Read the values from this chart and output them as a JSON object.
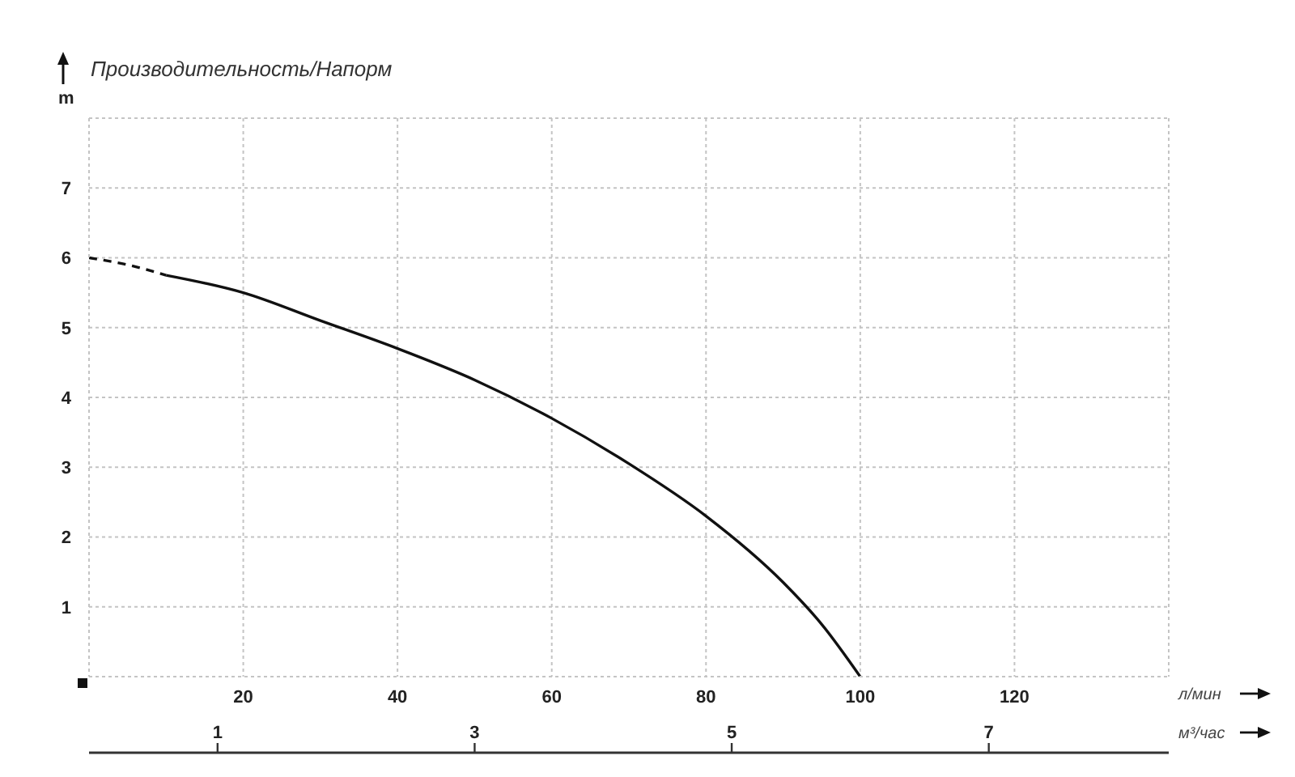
{
  "chart_data": {
    "type": "line",
    "title": "Производительность/Напорм",
    "ylabel": "m",
    "xlabel": "л/мин",
    "x2label": "м³/час",
    "series": [
      {
        "color": "#111111",
        "line_style": "dashed",
        "x": [
          0,
          5,
          10
        ],
        "values": [
          6.0,
          5.9,
          5.75
        ]
      },
      {
        "color": "#111111",
        "line_style": "solid",
        "x": [
          10,
          20,
          30,
          40,
          50,
          60,
          70,
          80,
          90,
          95,
          100
        ],
        "values": [
          5.75,
          5.5,
          5.1,
          4.7,
          4.25,
          3.7,
          3.05,
          2.3,
          1.35,
          0.75,
          0
        ]
      }
    ],
    "xlim": [
      0,
      140
    ],
    "xticks": [
      20,
      40,
      60,
      80,
      100,
      120
    ],
    "ylim": [
      0,
      8
    ],
    "yticks": [
      1,
      2,
      3,
      4,
      5,
      6,
      7
    ],
    "x2lim": [
      0,
      8.4
    ],
    "x2ticks": [
      1,
      3,
      5,
      7
    ],
    "grid": true,
    "marker": "none"
  }
}
